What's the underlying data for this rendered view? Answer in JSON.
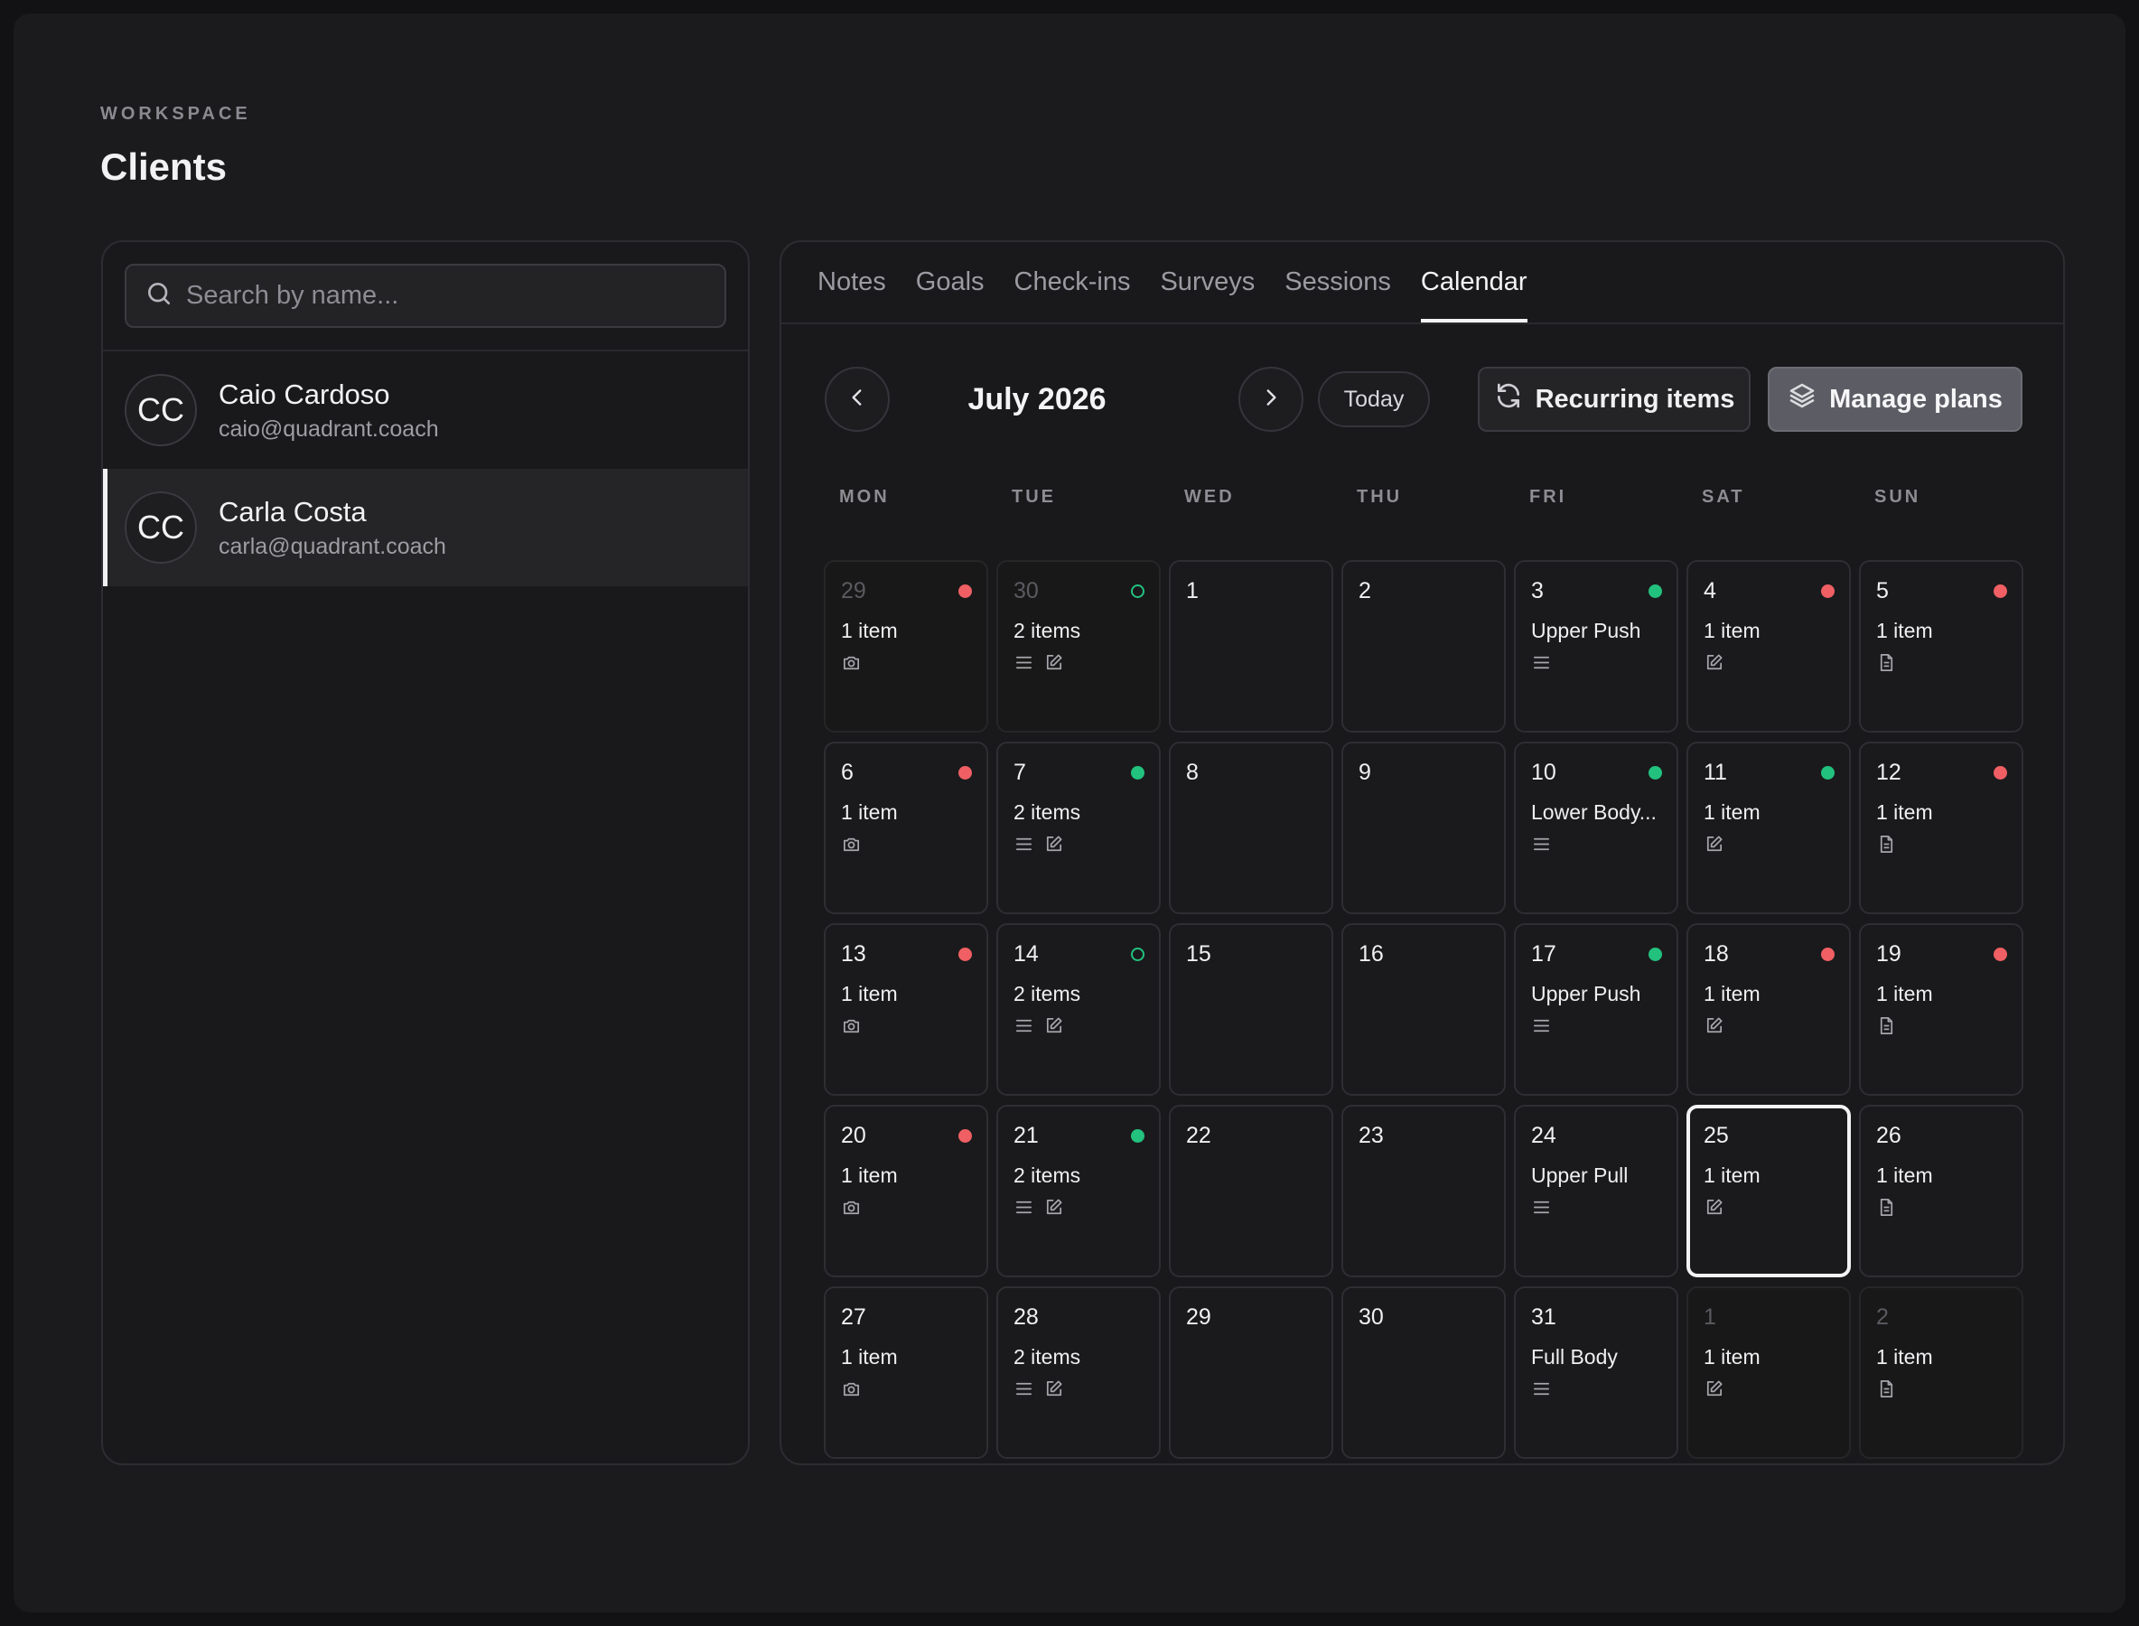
{
  "header": {
    "section_label": "WORKSPACE",
    "title": "Clients"
  },
  "search": {
    "placeholder": "Search by name..."
  },
  "clients": [
    {
      "initials": "CC",
      "name": "Caio Cardoso",
      "email": "caio@quadrant.coach",
      "selected": false
    },
    {
      "initials": "CC",
      "name": "Carla Costa",
      "email": "carla@quadrant.coach",
      "selected": true
    }
  ],
  "tabs": [
    {
      "label": "Notes",
      "active": false
    },
    {
      "label": "Goals",
      "active": false
    },
    {
      "label": "Check-ins",
      "active": false
    },
    {
      "label": "Surveys",
      "active": false
    },
    {
      "label": "Sessions",
      "active": false
    },
    {
      "label": "Calendar",
      "active": true
    }
  ],
  "calendar": {
    "month_label": "July 2026",
    "today_label": "Today",
    "recurring_label": "Recurring items",
    "manage_plans_label": "Manage plans",
    "weekdays": [
      "MON",
      "TUE",
      "WED",
      "THU",
      "FRI",
      "SAT",
      "SUN"
    ],
    "status_colors": {
      "missed": "#ef5f63",
      "done": "#22c17e",
      "pending": "#22c17e"
    },
    "weeks": [
      [
        {
          "day": "29",
          "out": true,
          "status": "red",
          "label": "1 item",
          "icons": [
            "camera-icon"
          ]
        },
        {
          "day": "30",
          "out": true,
          "status": "ring",
          "label": "2 items",
          "icons": [
            "list-icon",
            "edit-icon"
          ]
        },
        {
          "day": "1"
        },
        {
          "day": "2"
        },
        {
          "day": "3",
          "status": "green",
          "label": "Upper Push",
          "icons": [
            "list-icon"
          ]
        },
        {
          "day": "4",
          "status": "red",
          "label": "1 item",
          "icons": [
            "edit-icon"
          ]
        },
        {
          "day": "5",
          "status": "red",
          "label": "1 item",
          "icons": [
            "document-icon"
          ]
        }
      ],
      [
        {
          "day": "6",
          "status": "red",
          "label": "1 item",
          "icons": [
            "camera-icon"
          ]
        },
        {
          "day": "7",
          "status": "green",
          "label": "2 items",
          "icons": [
            "list-icon",
            "edit-icon"
          ]
        },
        {
          "day": "8"
        },
        {
          "day": "9"
        },
        {
          "day": "10",
          "status": "green",
          "label": "Lower Body...",
          "icons": [
            "list-icon"
          ]
        },
        {
          "day": "11",
          "status": "green",
          "label": "1 item",
          "icons": [
            "edit-icon"
          ]
        },
        {
          "day": "12",
          "status": "red",
          "label": "1 item",
          "icons": [
            "document-icon"
          ]
        }
      ],
      [
        {
          "day": "13",
          "status": "red",
          "label": "1 item",
          "icons": [
            "camera-icon"
          ]
        },
        {
          "day": "14",
          "status": "ring",
          "label": "2 items",
          "icons": [
            "list-icon",
            "edit-icon"
          ]
        },
        {
          "day": "15"
        },
        {
          "day": "16"
        },
        {
          "day": "17",
          "status": "green",
          "label": "Upper Push",
          "icons": [
            "list-icon"
          ]
        },
        {
          "day": "18",
          "status": "red",
          "label": "1 item",
          "icons": [
            "edit-icon"
          ]
        },
        {
          "day": "19",
          "status": "red",
          "label": "1 item",
          "icons": [
            "document-icon"
          ]
        }
      ],
      [
        {
          "day": "20",
          "status": "red",
          "label": "1 item",
          "icons": [
            "camera-icon"
          ]
        },
        {
          "day": "21",
          "status": "green",
          "label": "2 items",
          "icons": [
            "list-icon",
            "edit-icon"
          ]
        },
        {
          "day": "22"
        },
        {
          "day": "23"
        },
        {
          "day": "24",
          "label": "Upper Pull",
          "icons": [
            "list-icon"
          ]
        },
        {
          "day": "25",
          "today": true,
          "label": "1 item",
          "icons": [
            "edit-icon"
          ]
        },
        {
          "day": "26",
          "label": "1 item",
          "icons": [
            "document-icon"
          ]
        }
      ],
      [
        {
          "day": "27",
          "label": "1 item",
          "icons": [
            "camera-icon"
          ]
        },
        {
          "day": "28",
          "label": "2 items",
          "icons": [
            "list-icon",
            "edit-icon"
          ]
        },
        {
          "day": "29"
        },
        {
          "day": "30"
        },
        {
          "day": "31",
          "label": "Full Body",
          "icons": [
            "list-icon"
          ]
        },
        {
          "day": "1",
          "out": true,
          "label": "1 item",
          "icons": [
            "edit-icon"
          ]
        },
        {
          "day": "2",
          "out": true,
          "label": "1 item",
          "icons": [
            "document-icon"
          ]
        }
      ]
    ]
  }
}
